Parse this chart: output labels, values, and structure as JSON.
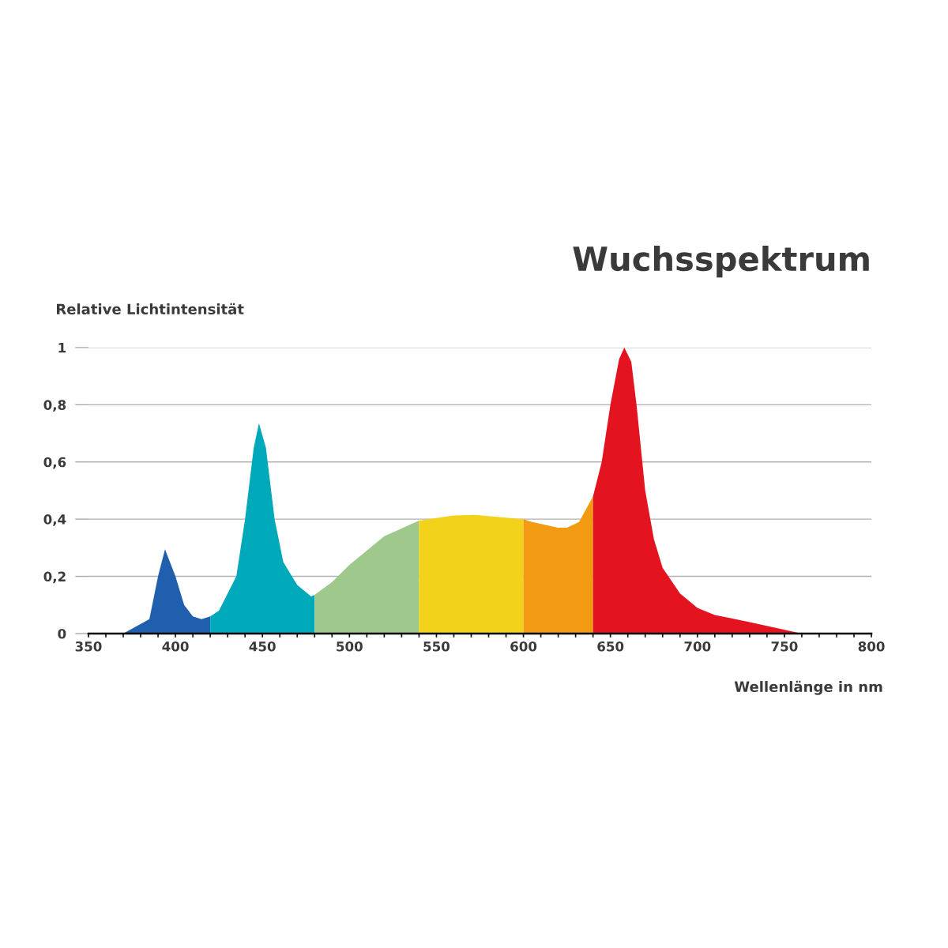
{
  "chart_data": {
    "type": "area",
    "title": "Wuchsspektrum",
    "ylabel": "Relative Lichtintensität",
    "xlabel": "Wellenlänge in nm",
    "series": [
      {
        "color": "#1f5fae",
        "x": [
          370,
          385,
          390,
          394,
          400,
          405,
          410,
          415,
          420
        ],
        "values": [
          0,
          0.05,
          0.2,
          0.295,
          0.2,
          0.1,
          0.06,
          0.05,
          0.06
        ]
      },
      {
        "color": "#00a9b9",
        "x": [
          420,
          425,
          435,
          440,
          445,
          448,
          452,
          457,
          462,
          470,
          478,
          480
        ],
        "values": [
          0.06,
          0.08,
          0.2,
          0.4,
          0.65,
          0.735,
          0.65,
          0.4,
          0.25,
          0.17,
          0.13,
          0.135
        ]
      },
      {
        "color": "#9fc98c",
        "x": [
          480,
          490,
          500,
          520,
          540
        ],
        "values": [
          0.135,
          0.18,
          0.24,
          0.34,
          0.395
        ]
      },
      {
        "color": "#f3d21c",
        "x": [
          540,
          560,
          572,
          590,
          600
        ],
        "values": [
          0.395,
          0.413,
          0.415,
          0.405,
          0.4
        ]
      },
      {
        "color": "#f29a12",
        "x": [
          600,
          605,
          620,
          625,
          632,
          640
        ],
        "values": [
          0.4,
          0.39,
          0.37,
          0.37,
          0.39,
          0.48
        ]
      },
      {
        "color": "#e3131f",
        "x": [
          640,
          645,
          650,
          655,
          658,
          662,
          665,
          670,
          675,
          680,
          690,
          700,
          710,
          718,
          730,
          745,
          760
        ],
        "values": [
          0.48,
          0.6,
          0.8,
          0.96,
          1.0,
          0.95,
          0.8,
          0.5,
          0.33,
          0.23,
          0.14,
          0.09,
          0.065,
          0.055,
          0.04,
          0.02,
          0
        ]
      }
    ],
    "xlim": [
      350,
      800
    ],
    "xticks": [
      350,
      {
        "value": 360,
        "label": null
      },
      {
        "value": 370,
        "label": null
      },
      {
        "value": 380,
        "label": null
      },
      {
        "value": 390,
        "label": null
      },
      400,
      {
        "value": 410,
        "label": null
      },
      {
        "value": 420,
        "label": null
      },
      {
        "value": 430,
        "label": null
      },
      {
        "value": 440,
        "label": null
      },
      450,
      {
        "value": 460,
        "label": null
      },
      {
        "value": 470,
        "label": null
      },
      {
        "value": 480,
        "label": null
      },
      {
        "value": 490,
        "label": null
      },
      500,
      {
        "value": 510,
        "label": null
      },
      {
        "value": 520,
        "label": null
      },
      {
        "value": 530,
        "label": null
      },
      {
        "value": 540,
        "label": null
      },
      550,
      {
        "value": 560,
        "label": null
      },
      {
        "value": 570,
        "label": null
      },
      {
        "value": 580,
        "label": null
      },
      {
        "value": 590,
        "label": null
      },
      600,
      {
        "value": 610,
        "label": null
      },
      {
        "value": 620,
        "label": null
      },
      {
        "value": 630,
        "label": null
      },
      {
        "value": 640,
        "label": null
      },
      650,
      {
        "value": 660,
        "label": null
      },
      {
        "value": 670,
        "label": null
      },
      {
        "value": 680,
        "label": null
      },
      {
        "value": 690,
        "label": null
      },
      700,
      {
        "value": 710,
        "label": null
      },
      {
        "value": 720,
        "label": null
      },
      {
        "value": 730,
        "label": null
      },
      {
        "value": 740,
        "label": null
      },
      750,
      {
        "value": 760,
        "label": null
      },
      {
        "value": 770,
        "label": null
      },
      {
        "value": 780,
        "label": null
      },
      {
        "value": 790,
        "label": null
      },
      800
    ],
    "ylim": [
      0,
      1
    ],
    "yticks": [
      0,
      {
        "value": 0.2,
        "label": "0,2"
      },
      {
        "value": 0.4,
        "label": "0,4"
      },
      {
        "value": 0.6,
        "label": "0,6"
      },
      {
        "value": 0.8,
        "label": "0,8"
      },
      1
    ],
    "grid": "y"
  }
}
